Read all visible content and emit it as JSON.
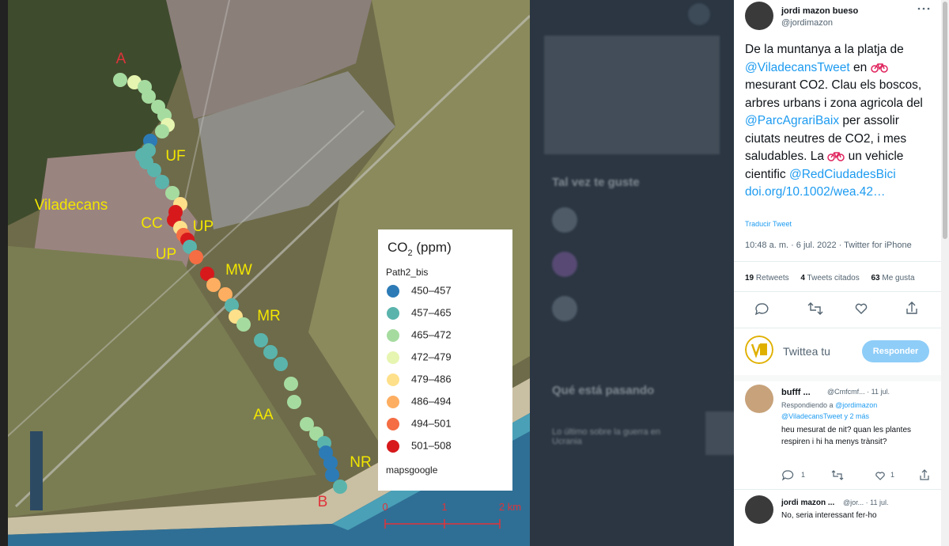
{
  "map": {
    "point_labels": [
      "A",
      "UF",
      "Viladecans",
      "CC",
      "UP",
      "UP",
      "MW",
      "MR",
      "AA",
      "NR",
      "B"
    ],
    "legend": {
      "title": [
        "CO",
        "2",
        " (ppm)"
      ],
      "field": "Path2_bis",
      "classes": [
        {
          "label": "450–457",
          "color": "#2c7bb6"
        },
        {
          "label": "457–465",
          "color": "#5ab4ac"
        },
        {
          "label": "465–472",
          "color": "#a6dba0"
        },
        {
          "label": "472–479",
          "color": "#e6f5b0"
        },
        {
          "label": "479–486",
          "color": "#fee08b"
        },
        {
          "label": "486–494",
          "color": "#fdae61"
        },
        {
          "label": "494–501",
          "color": "#f46d43"
        },
        {
          "label": "501–508",
          "color": "#d7191c"
        }
      ],
      "source": "mapsgoogle"
    },
    "scale_bar": [
      "0",
      "1",
      "2 km"
    ]
  },
  "background": {
    "sections": [
      "Tal vez te guste",
      "Qué está pasando"
    ],
    "trend": "Lo último sobre la guerra en Ucrania"
  },
  "tweet": {
    "author": "jordi mazon bueso",
    "handle": "@jordimazon",
    "text": [
      "De la muntanya a la platja de ",
      "@ViladecansTweet",
      " en ",
      " mesurant CO2. Clau els boscos, arbres urbans i zona agricola del ",
      "@ParcAgrariBaix",
      " per assolir ciutats neutres de CO2, i mes saludables. La ",
      " un vehicle cientific ",
      "@RedCiudadesBici",
      "doi.org/10.1002/wea.42…"
    ],
    "translate": "Traducir Tweet",
    "meta": "10:48 a. m. · 6 jul. 2022 · Twitter for iPhone",
    "stats": [
      {
        "count": "19",
        "label": "Retweets"
      },
      {
        "count": "4",
        "label": "Tweets citados"
      },
      {
        "count": "63",
        "label": "Me gusta"
      }
    ],
    "reply_placeholder": "Twittea tu",
    "reply_button": "Responder"
  },
  "replies": [
    {
      "author": "bufff ...",
      "handle": "@Cmfcmf... · 11 jul.",
      "replying": [
        "Respondiendo a ",
        "@jordimazon",
        "@ViladecansTweet",
        " y 2 más"
      ],
      "text": "heu mesurat de nit? quan les plantes respiren i hi ha menys trànsit?",
      "counts": [
        "1",
        "1"
      ]
    },
    {
      "author": "jordi mazon ...",
      "handle": "@jor... · 11 jul.",
      "text": "No, seria interessant fer-ho"
    }
  ]
}
